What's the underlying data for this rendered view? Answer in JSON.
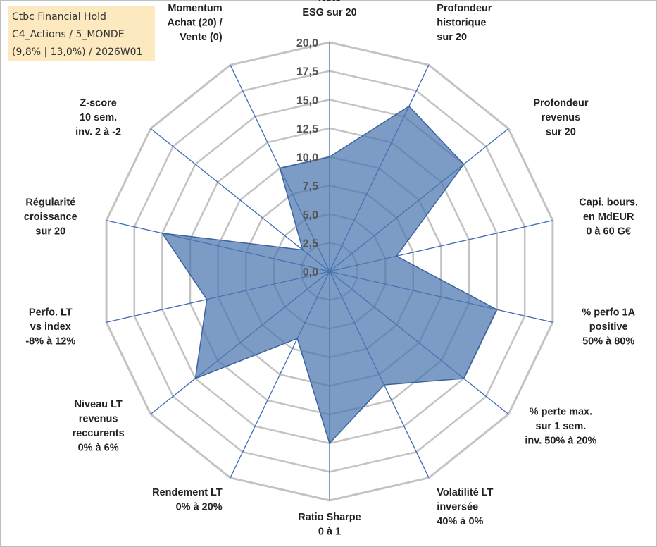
{
  "title_box": {
    "line1": "Ctbc Financial Hold",
    "line2": "C4_Actions / 5_MONDE",
    "line3": "(9,8% | 13,0%) / 2026W01"
  },
  "colors": {
    "grid": "#c3c3c3",
    "spoke": "#3f6cb4",
    "fill": "#4a76b0",
    "fill_stroke": "#3a64a0"
  },
  "chart_data": {
    "type": "radar",
    "title": "Ctbc Financial Hold",
    "rmin": 0,
    "rmax": 20,
    "tick_step": 2.5,
    "tick_labels": [
      "0,0",
      "2,5",
      "5,0",
      "7,5",
      "10,0",
      "12,5",
      "15,0",
      "17,5",
      "20,0"
    ],
    "axes": [
      {
        "lines": [
          "Note",
          "ESG sur 20"
        ],
        "value": 10.0
      },
      {
        "lines": [
          "Profondeur",
          "historique",
          "sur 20"
        ],
        "value": 16.0
      },
      {
        "lines": [
          "Profondeur",
          "revenus",
          "sur 20"
        ],
        "value": 15.0
      },
      {
        "lines": [
          "Capi. bours.",
          "en MdEUR",
          "0 à 60 G€"
        ],
        "value": 6.0
      },
      {
        "lines": [
          "% perfo 1A",
          "positive",
          "50% à 80%"
        ],
        "value": 15.0
      },
      {
        "lines": [
          "% perte max.",
          "sur 1 sem.",
          "inv. 50% à 20%"
        ],
        "value": 15.0
      },
      {
        "lines": [
          "Volatilité LT",
          "inversée",
          "40% à 0%"
        ],
        "value": 11.0
      },
      {
        "lines": [
          "Ratio Sharpe",
          "0 à 1"
        ],
        "value": 15.0
      },
      {
        "lines": [
          "Rendement LT",
          "0% à 20%"
        ],
        "value": 6.5
      },
      {
        "lines": [
          "Niveau LT",
          "revenus",
          "reccurents",
          "0% à 6%"
        ],
        "value": 15.0
      },
      {
        "lines": [
          "Perfo. LT",
          "vs index",
          "-8% à 12%"
        ],
        "value": 11.0
      },
      {
        "lines": [
          "Régularité",
          "croissance",
          "sur 20"
        ],
        "value": 15.0
      },
      {
        "lines": [
          "Z-score",
          "10 sem.",
          "inv. 2 à -2"
        ],
        "value": 3.0
      },
      {
        "lines": [
          "Momentum",
          "Achat (20) /",
          "Vente (0)"
        ],
        "value": 10.0
      }
    ]
  }
}
